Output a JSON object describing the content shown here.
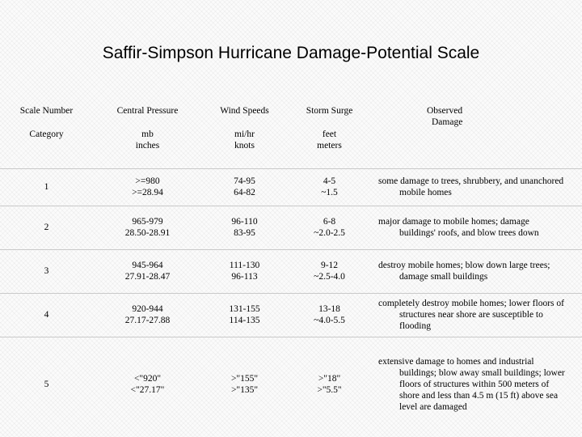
{
  "title": "Saffir-Simpson Hurricane Damage-Potential Scale",
  "headers": {
    "scale_number": "Scale Number",
    "category": "Category",
    "pressure": "Central Pressure",
    "pressure_units": [
      "mb",
      "inches"
    ],
    "wind": "Wind Speeds",
    "wind_units": [
      "mi/hr",
      "knots"
    ],
    "surge": "Storm Surge",
    "surge_units": [
      "feet",
      "meters"
    ],
    "damage": [
      "Observed",
      "Damage"
    ]
  },
  "rows": [
    {
      "number": "1",
      "pressure": [
        ">=980",
        ">=28.94"
      ],
      "wind": [
        "74-95",
        "64-82"
      ],
      "surge": [
        "4-5",
        "~1.5"
      ],
      "damage": [
        "some damage to trees, shrubbery, and unanchored",
        "mobile homes"
      ]
    },
    {
      "number": "2",
      "pressure": [
        "965-979",
        "28.50-28.91"
      ],
      "wind": [
        "96-110",
        "83-95"
      ],
      "surge": [
        "6-8",
        "~2.0-2.5"
      ],
      "damage": [
        "major damage to mobile homes; damage",
        "buildings' roofs, and blow trees down"
      ]
    },
    {
      "number": "3",
      "pressure": [
        "945-964",
        "27.91-28.47"
      ],
      "wind": [
        "111-130",
        "96-113"
      ],
      "surge": [
        "9-12",
        "~2.5-4.0"
      ],
      "damage": [
        "destroy mobile homes; blow down large trees;",
        "damage small buildings"
      ]
    },
    {
      "number": "4",
      "pressure": [
        "920-944",
        "27.17-27.88"
      ],
      "wind": [
        "131-155",
        "114-135"
      ],
      "surge": [
        "13-18",
        "~4.0-5.5"
      ],
      "damage": [
        "completely destroy mobile homes; lower floors of",
        "structures near shore are susceptible to",
        "flooding"
      ]
    },
    {
      "number": "5",
      "pressure": [
        "<\"920\"",
        "<\"27.17\""
      ],
      "wind": [
        ">\"155\"",
        ">\"135\""
      ],
      "surge": [
        ">\"18\"",
        ">\"5.5\""
      ],
      "damage": [
        "extensive damage to homes and industrial",
        "buildings; blow away small buildings; lower",
        "floors of structures within 500 meters of",
        "shore and less than 4.5 m (15 ft) above sea",
        "level are damaged"
      ]
    }
  ]
}
